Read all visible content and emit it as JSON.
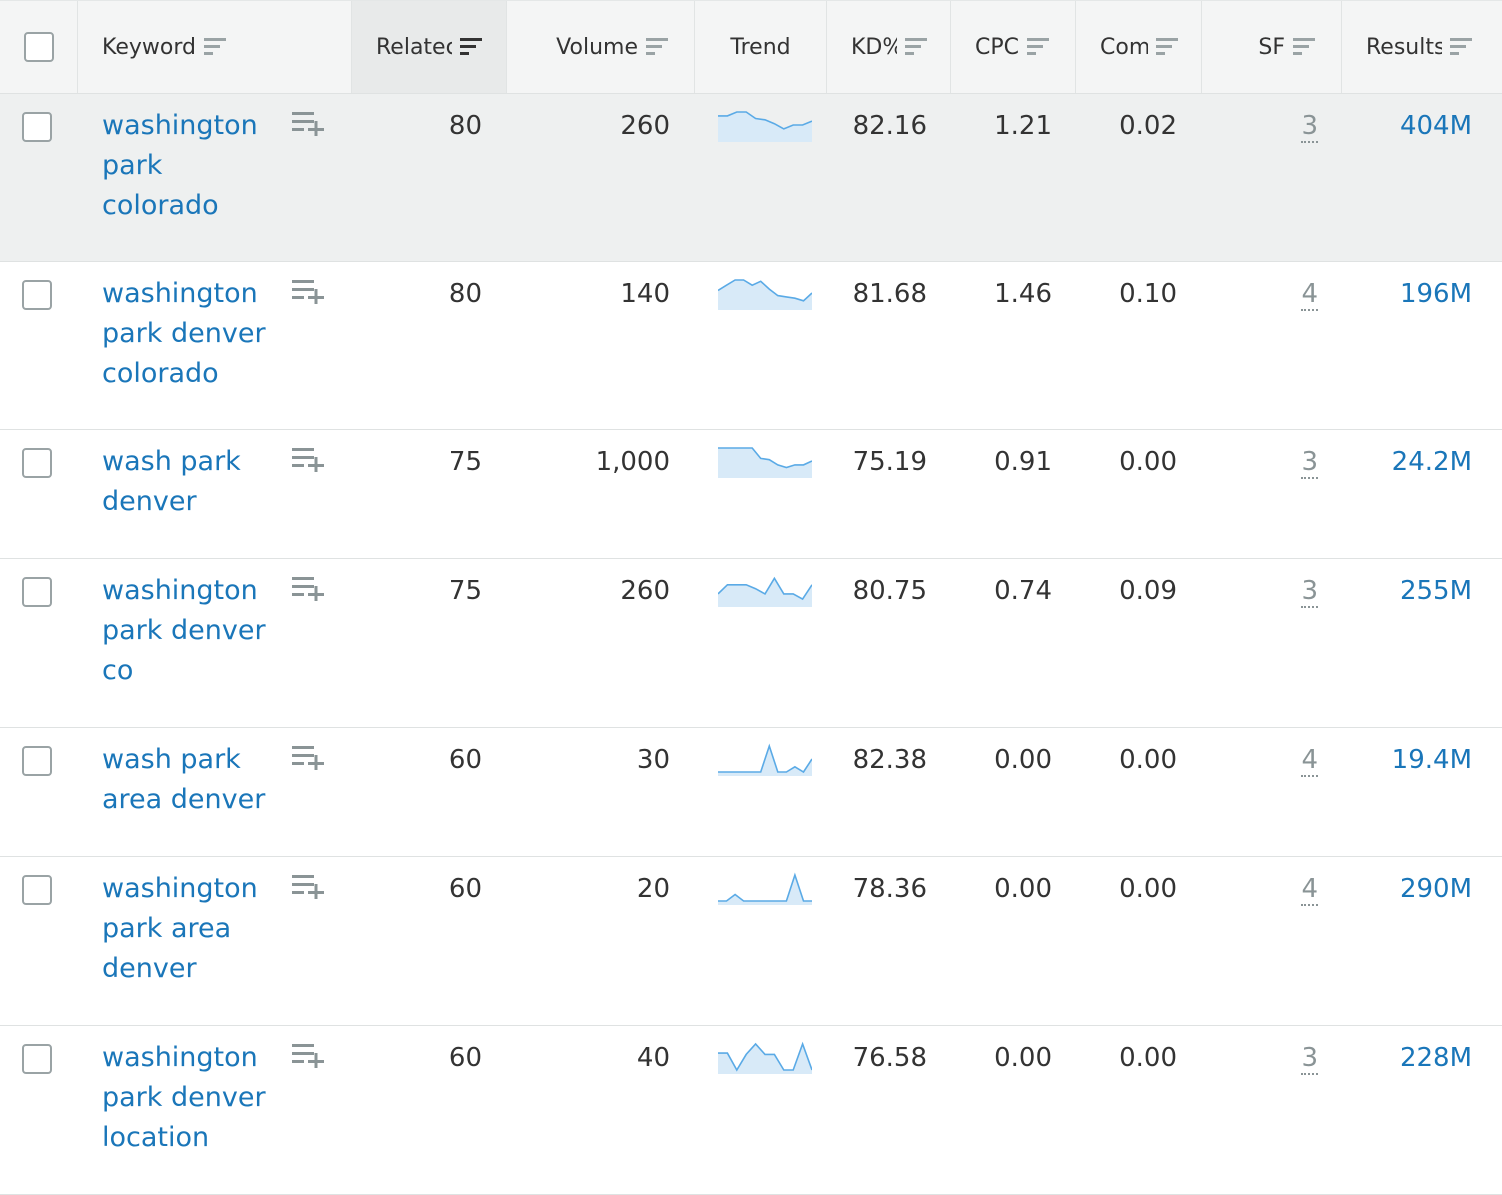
{
  "header": {
    "keyword": "Keyword",
    "related": "Relatec",
    "volume": "Volume",
    "trend": "Trend",
    "kd": "KD%",
    "cpc": "CPC",
    "com": "Com",
    "sf": "SF",
    "results": "Results"
  },
  "colors": {
    "link": "#1a76b9",
    "trend_line": "#5aaae6",
    "trend_fill": "#d8eaf8",
    "row_highlight": "#eef0f0"
  },
  "rows": [
    {
      "keyword": "washington park colorado",
      "related": "80",
      "volume": "260",
      "kd": "82.16",
      "cpc": "1.21",
      "com": "0.02",
      "sf": "3",
      "results": "404M",
      "trend": [
        0.85,
        0.85,
        1.0,
        1.0,
        0.75,
        0.7,
        0.55,
        0.35,
        0.5,
        0.5,
        0.65
      ]
    },
    {
      "keyword": "washington park denver colorado",
      "related": "80",
      "volume": "140",
      "kd": "81.68",
      "cpc": "1.46",
      "com": "0.10",
      "sf": "4",
      "results": "196M",
      "trend": [
        0.6,
        0.8,
        1.0,
        1.0,
        0.8,
        0.95,
        0.65,
        0.4,
        0.35,
        0.3,
        0.2,
        0.5
      ]
    },
    {
      "keyword": "wash park denver",
      "related": "75",
      "volume": "1,000",
      "kd": "75.19",
      "cpc": "0.91",
      "com": "0.00",
      "sf": "3",
      "results": "24.2M",
      "trend": [
        1.0,
        1.0,
        1.0,
        1.0,
        1.0,
        0.6,
        0.55,
        0.35,
        0.25,
        0.35,
        0.35,
        0.5
      ]
    },
    {
      "keyword": "washington park denver co",
      "related": "75",
      "volume": "260",
      "kd": "80.75",
      "cpc": "0.74",
      "com": "0.09",
      "sf": "3",
      "results": "255M",
      "trend": [
        0.35,
        0.7,
        0.7,
        0.7,
        0.55,
        0.35,
        0.95,
        0.35,
        0.35,
        0.15,
        0.7
      ]
    },
    {
      "keyword": "wash park area denver",
      "related": "60",
      "volume": "30",
      "kd": "82.38",
      "cpc": "0.00",
      "com": "0.00",
      "sf": "4",
      "results": "19.4M",
      "trend": [
        0.0,
        0.0,
        0.0,
        0.0,
        0.0,
        0.0,
        1.0,
        0.0,
        0.0,
        0.2,
        0.0,
        0.5
      ]
    },
    {
      "keyword": "washington park area denver",
      "related": "60",
      "volume": "20",
      "kd": "78.36",
      "cpc": "0.00",
      "com": "0.00",
      "sf": "4",
      "results": "290M",
      "trend": [
        0.0,
        0.0,
        0.25,
        0.0,
        0.0,
        0.0,
        0.0,
        0.0,
        0.0,
        1.0,
        0.0,
        0.0
      ]
    },
    {
      "keyword": "washington park denver location",
      "related": "60",
      "volume": "40",
      "kd": "76.58",
      "cpc": "0.00",
      "com": "0.00",
      "sf": "3",
      "results": "228M",
      "trend": [
        0.65,
        0.65,
        0.0,
        0.6,
        1.0,
        0.6,
        0.6,
        0.0,
        0.0,
        1.0,
        0.0
      ]
    }
  ]
}
